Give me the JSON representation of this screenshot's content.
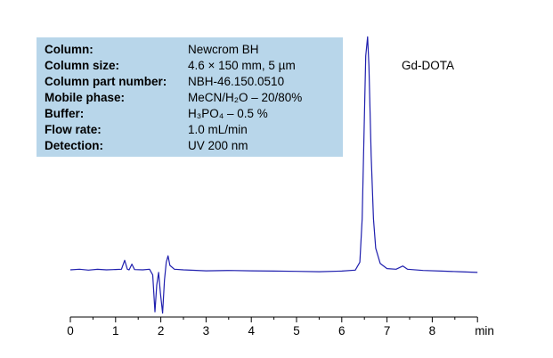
{
  "chart_data": {
    "type": "line",
    "xlabel": "min",
    "xlim": [
      0,
      9
    ],
    "xticks": [
      0,
      1,
      2,
      3,
      4,
      5,
      6,
      7,
      8
    ],
    "peak_label": "Gd-DOTA",
    "series_color": "#1f1fae",
    "info": [
      {
        "label": "Column:",
        "value": "Newcrom BH"
      },
      {
        "label": "Column size:",
        "value": "4.6 × 150 mm, 5 µm"
      },
      {
        "label": "Column part number:",
        "value": "NBH-46.150.0510"
      },
      {
        "label": "Mobile phase:",
        "value": "MeCN/H₂O – 20/80%"
      },
      {
        "label": "Buffer:",
        "value": "H₃PO₄ – 0.5 %"
      },
      {
        "label": "Flow rate:",
        "value": "1.0 mL/min"
      },
      {
        "label": "Detection:",
        "value": "UV 200 nm"
      }
    ],
    "points": [
      [
        0,
        0
      ],
      [
        0.2,
        0.05
      ],
      [
        0.4,
        -0.02
      ],
      [
        0.6,
        0.04
      ],
      [
        0.8,
        0.0
      ],
      [
        1.0,
        0.03
      ],
      [
        1.13,
        0.05
      ],
      [
        1.2,
        0.75
      ],
      [
        1.26,
        0.05
      ],
      [
        1.3,
        0.0
      ],
      [
        1.36,
        0.45
      ],
      [
        1.42,
        0.02
      ],
      [
        1.6,
        0.0
      ],
      [
        1.75,
        0.05
      ],
      [
        1.82,
        -0.4
      ],
      [
        1.87,
        -3.3
      ],
      [
        1.91,
        -1.2
      ],
      [
        1.95,
        -0.2
      ],
      [
        1.99,
        -1.8
      ],
      [
        2.04,
        -3.4
      ],
      [
        2.08,
        -0.8
      ],
      [
        2.12,
        0.6
      ],
      [
        2.16,
        1.1
      ],
      [
        2.2,
        0.35
      ],
      [
        2.3,
        0.05
      ],
      [
        2.5,
        0.0
      ],
      [
        3.0,
        -0.08
      ],
      [
        3.5,
        -0.05
      ],
      [
        4.0,
        -0.08
      ],
      [
        4.5,
        -0.1
      ],
      [
        5.0,
        -0.12
      ],
      [
        5.5,
        -0.15
      ],
      [
        6.0,
        -0.1
      ],
      [
        6.3,
        -0.02
      ],
      [
        6.4,
        0.6
      ],
      [
        6.45,
        4.0
      ],
      [
        6.5,
        12.0
      ],
      [
        6.53,
        16.8
      ],
      [
        6.57,
        18.3
      ],
      [
        6.6,
        16.0
      ],
      [
        6.65,
        9.0
      ],
      [
        6.7,
        4.0
      ],
      [
        6.75,
        1.7
      ],
      [
        6.85,
        0.5
      ],
      [
        7.0,
        0.1
      ],
      [
        7.2,
        0.05
      ],
      [
        7.35,
        0.3
      ],
      [
        7.45,
        0.05
      ],
      [
        7.8,
        -0.05
      ],
      [
        8.2,
        -0.1
      ],
      [
        8.6,
        -0.15
      ],
      [
        9.0,
        -0.2
      ]
    ]
  }
}
